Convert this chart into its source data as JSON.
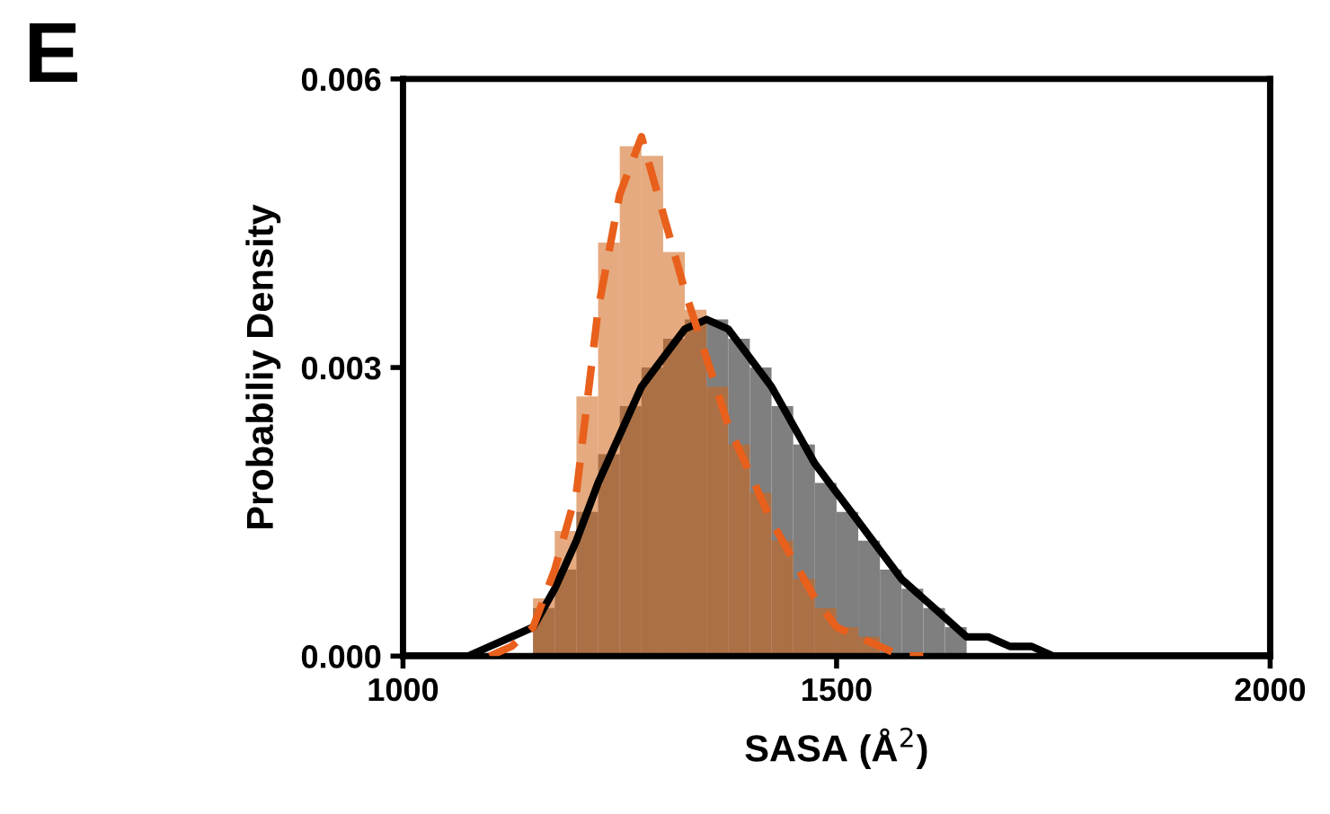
{
  "chart_data": {
    "type": "histogram",
    "xlabel": "SASA (Å$^{2}$)",
    "ylabel": "Probabiliy Density",
    "annotations": [
      "E"
    ],
    "xlim": [
      1000,
      2000
    ],
    "xticks": [
      1000,
      1500,
      2000
    ],
    "ylim": [
      0,
      0.006
    ],
    "yticks": [
      {
        "value": 0,
        "label": "0.000"
      },
      {
        "value": 0.003,
        "label": "0.003"
      },
      {
        "value": 0.006,
        "label": "0.006"
      }
    ],
    "grid": false,
    "legend": false,
    "series": [
      {
        "color": "#7f7f7f",
        "bins": [
          1150,
          1175,
          1200,
          1225,
          1250,
          1275,
          1300,
          1325,
          1350,
          1375,
          1400,
          1425,
          1450,
          1475,
          1500,
          1525,
          1550,
          1575,
          1600,
          1625,
          1650
        ],
        "values": [
          0.0005,
          0.0009,
          0.0015,
          0.0021,
          0.0026,
          0.003,
          0.0033,
          0.0035,
          0.0035,
          0.0033,
          0.003,
          0.0026,
          0.0022,
          0.0018,
          0.0015,
          0.0012,
          0.0009,
          0.0007,
          0.0005,
          0.0003
        ]
      },
      {
        "color": "#d06515",
        "bins": [
          1150,
          1175,
          1200,
          1225,
          1250,
          1275,
          1300,
          1325,
          1350,
          1375,
          1400,
          1425,
          1450,
          1475,
          1500,
          1525,
          1550
        ],
        "values": [
          0.0006,
          0.0013,
          0.0027,
          0.0043,
          0.0053,
          0.0052,
          0.0042,
          0.0036,
          0.0028,
          0.0022,
          0.0017,
          0.0012,
          0.0008,
          0.0005,
          0.0003,
          0.0002
        ]
      },
      {
        "type": "line",
        "color": "#000000",
        "line_style": "solid",
        "x": [
          1000,
          1075,
          1100,
          1125,
          1150,
          1175,
          1200,
          1225,
          1250,
          1275,
          1300,
          1325,
          1350,
          1375,
          1400,
          1425,
          1450,
          1475,
          1500,
          1525,
          1550,
          1575,
          1600,
          1625,
          1650,
          1675,
          1700,
          1725,
          1750,
          1800,
          1900,
          2000
        ],
        "values": [
          0,
          0,
          0.0001,
          0.0002,
          0.0003,
          0.0007,
          0.0012,
          0.0018,
          0.0023,
          0.0028,
          0.0031,
          0.0034,
          0.0035,
          0.0034,
          0.0031,
          0.0028,
          0.0024,
          0.002,
          0.0017,
          0.0014,
          0.0011,
          0.0008,
          0.0006,
          0.0004,
          0.0002,
          0.0002,
          0.0001,
          0.0001,
          0,
          0,
          0,
          0
        ]
      },
      {
        "type": "line",
        "color": "#e8601c",
        "line_style": "dashed",
        "x": [
          1100,
          1125,
          1150,
          1175,
          1200,
          1225,
          1250,
          1275,
          1300,
          1325,
          1350,
          1375,
          1400,
          1425,
          1450,
          1475,
          1500,
          1525,
          1550,
          1575,
          1600
        ],
        "values": [
          0,
          0.0001,
          0.0003,
          0.0009,
          0.0017,
          0.0036,
          0.0048,
          0.0054,
          0.0046,
          0.0038,
          0.0031,
          0.0024,
          0.0019,
          0.0014,
          0.001,
          0.0006,
          0.0003,
          0.0002,
          0.0001,
          0,
          0
        ]
      }
    ]
  }
}
